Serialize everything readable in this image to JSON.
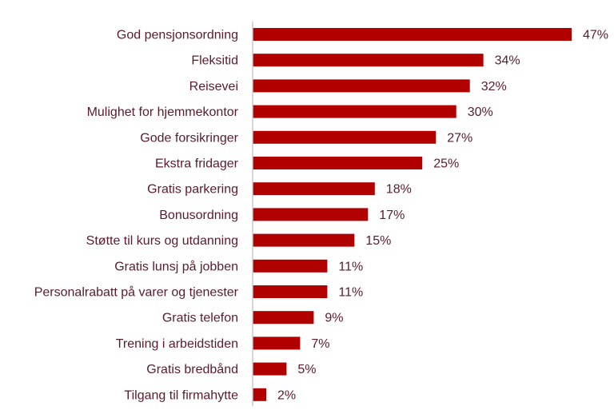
{
  "chart_data": {
    "type": "bar",
    "orientation": "horizontal",
    "title": "",
    "xlabel": "",
    "ylabel": "",
    "value_suffix": "%",
    "xlim": [
      0,
      47
    ],
    "grid": false,
    "legend": "none",
    "bar_color": "#b00000",
    "axis_color": "#c8c8c8",
    "text_color": "#5a1b2a",
    "categories": [
      "God pensjonsordning",
      "Fleksitid",
      "Reisevei",
      "Mulighet for hjemmekontor",
      "Gode forsikringer",
      "Ekstra fridager",
      "Gratis parkering",
      "Bonusordning",
      "Støtte til kurs og utdanning",
      "Gratis lunsj på jobben",
      "Personalrabatt på varer og tjenester",
      "Gratis telefon",
      "Trening i arbeidstiden",
      "Gratis bredbånd",
      "Tilgang til firmahytte"
    ],
    "values": [
      47,
      34,
      32,
      30,
      27,
      25,
      18,
      17,
      15,
      11,
      11,
      9,
      7,
      5,
      2
    ]
  }
}
